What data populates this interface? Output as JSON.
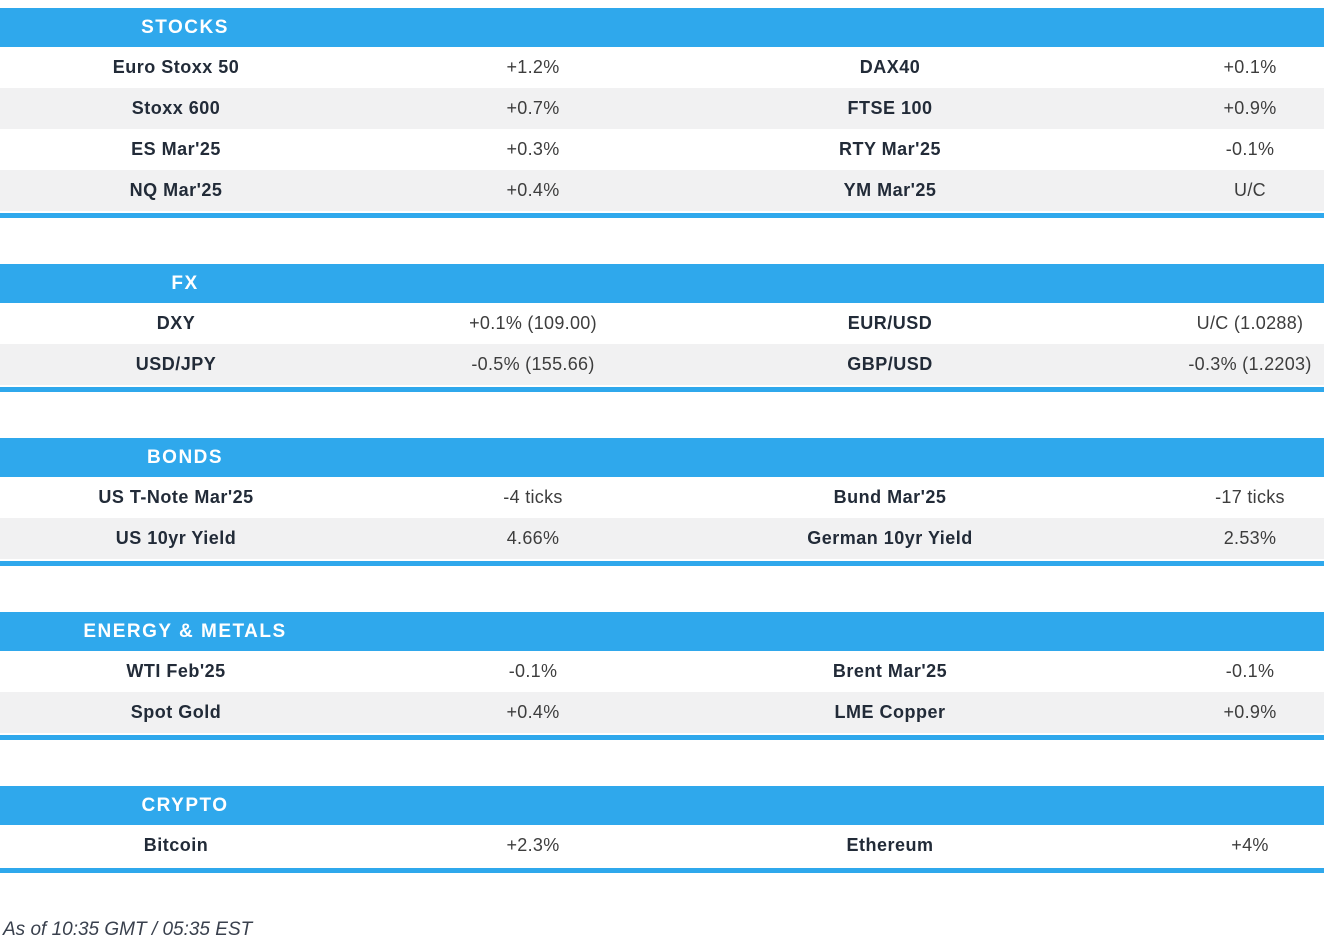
{
  "colors": {
    "accent_blue": "#2FA8EC",
    "row_alt_gray": "#F1F1F2",
    "name_text": "#222B38",
    "value_text": "#3D3D3D"
  },
  "chart_data": [
    {
      "type": "table",
      "title": "STOCKS",
      "columns": [
        "instrument",
        "change",
        "instrument",
        "change"
      ],
      "rows": [
        [
          "Euro Stoxx 50",
          "+1.2%",
          "DAX40",
          "+0.1%"
        ],
        [
          "Stoxx 600",
          "+0.7%",
          "FTSE 100",
          "+0.9%"
        ],
        [
          "ES Mar'25",
          "+0.3%",
          "RTY Mar'25",
          "-0.1%"
        ],
        [
          "NQ Mar'25",
          "+0.4%",
          "YM Mar'25",
          "U/C"
        ]
      ]
    },
    {
      "type": "table",
      "title": "FX",
      "columns": [
        "instrument",
        "change",
        "instrument",
        "change"
      ],
      "rows": [
        [
          "DXY",
          "+0.1% (109.00)",
          "EUR/USD",
          "U/C (1.0288)"
        ],
        [
          "USD/JPY",
          "-0.5% (155.66)",
          "GBP/USD",
          "-0.3% (1.2203)"
        ]
      ]
    },
    {
      "type": "table",
      "title": "BONDS",
      "columns": [
        "instrument",
        "change",
        "instrument",
        "change"
      ],
      "rows": [
        [
          "US T-Note Mar'25",
          "-4 ticks",
          "Bund Mar'25",
          "-17 ticks"
        ],
        [
          "US 10yr Yield",
          "4.66%",
          "German 10yr Yield",
          "2.53%"
        ]
      ]
    },
    {
      "type": "table",
      "title": "ENERGY & METALS",
      "columns": [
        "instrument",
        "change",
        "instrument",
        "change"
      ],
      "rows": [
        [
          "WTI Feb'25",
          "-0.1%",
          "Brent Mar'25",
          "-0.1%"
        ],
        [
          "Spot Gold",
          "+0.4%",
          "LME Copper",
          "+0.9%"
        ]
      ]
    },
    {
      "type": "table",
      "title": "CRYPTO",
      "columns": [
        "instrument",
        "change",
        "instrument",
        "change"
      ],
      "rows": [
        [
          "Bitcoin",
          "+2.3%",
          "Ethereum",
          "+4%"
        ]
      ]
    }
  ],
  "footer": {
    "as_of": "As of 10:35 GMT / 05:35 EST"
  }
}
